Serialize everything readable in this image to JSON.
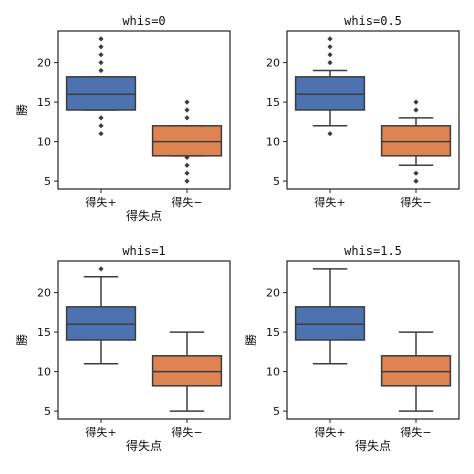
{
  "chart_data": [
    {
      "type": "box",
      "title": "whis=0",
      "xlabel": "得失点",
      "ylabel": "勝",
      "ylim": [
        4,
        24
      ],
      "yticks": [
        5,
        10,
        15,
        20
      ],
      "categories": [
        "得失+",
        "得失−"
      ],
      "colors": [
        "#4c72b0",
        "#dd8452"
      ],
      "boxes": [
        {
          "q1": 14,
          "median": 16,
          "q3": 18.2,
          "whisker_low": 14,
          "whisker_high": 18.2,
          "fliers": [
            11,
            12,
            13,
            19,
            20,
            21,
            22,
            23
          ]
        },
        {
          "q1": 8.2,
          "median": 10,
          "q3": 12,
          "whisker_low": 8.2,
          "whisker_high": 12,
          "fliers": [
            5,
            6,
            7,
            8,
            13,
            14,
            15
          ]
        }
      ]
    },
    {
      "type": "box",
      "title": "whis=0.5",
      "xlabel": "",
      "ylabel": "",
      "ylim": [
        4,
        24
      ],
      "yticks": [
        5,
        10,
        15,
        20
      ],
      "categories": [
        "得失+",
        "得失−"
      ],
      "colors": [
        "#4c72b0",
        "#dd8452"
      ],
      "boxes": [
        {
          "q1": 14,
          "median": 16,
          "q3": 18.2,
          "whisker_low": 12,
          "whisker_high": 19,
          "fliers": [
            11,
            20,
            21,
            22,
            23
          ]
        },
        {
          "q1": 8.2,
          "median": 10,
          "q3": 12,
          "whisker_low": 7,
          "whisker_high": 13,
          "fliers": [
            5,
            6,
            14,
            15
          ]
        }
      ]
    },
    {
      "type": "box",
      "title": "whis=1",
      "xlabel": "得失点",
      "ylabel": "勝",
      "ylim": [
        4,
        24
      ],
      "yticks": [
        5,
        10,
        15,
        20
      ],
      "categories": [
        "得失+",
        "得失−"
      ],
      "colors": [
        "#4c72b0",
        "#dd8452"
      ],
      "boxes": [
        {
          "q1": 14,
          "median": 16,
          "q3": 18.2,
          "whisker_low": 11,
          "whisker_high": 22,
          "fliers": [
            23
          ]
        },
        {
          "q1": 8.2,
          "median": 10,
          "q3": 12,
          "whisker_low": 5,
          "whisker_high": 15,
          "fliers": []
        }
      ]
    },
    {
      "type": "box",
      "title": "whis=1.5",
      "xlabel": "得失点",
      "ylabel": "勝",
      "ylim": [
        4,
        24
      ],
      "yticks": [
        5,
        10,
        15,
        20
      ],
      "categories": [
        "得失+",
        "得失−"
      ],
      "colors": [
        "#4c72b0",
        "#dd8452"
      ],
      "boxes": [
        {
          "q1": 14,
          "median": 16,
          "q3": 18.2,
          "whisker_low": 11,
          "whisker_high": 23,
          "fliers": []
        },
        {
          "q1": 8.2,
          "median": 10,
          "q3": 12,
          "whisker_low": 5,
          "whisker_high": 15,
          "fliers": []
        }
      ]
    }
  ]
}
